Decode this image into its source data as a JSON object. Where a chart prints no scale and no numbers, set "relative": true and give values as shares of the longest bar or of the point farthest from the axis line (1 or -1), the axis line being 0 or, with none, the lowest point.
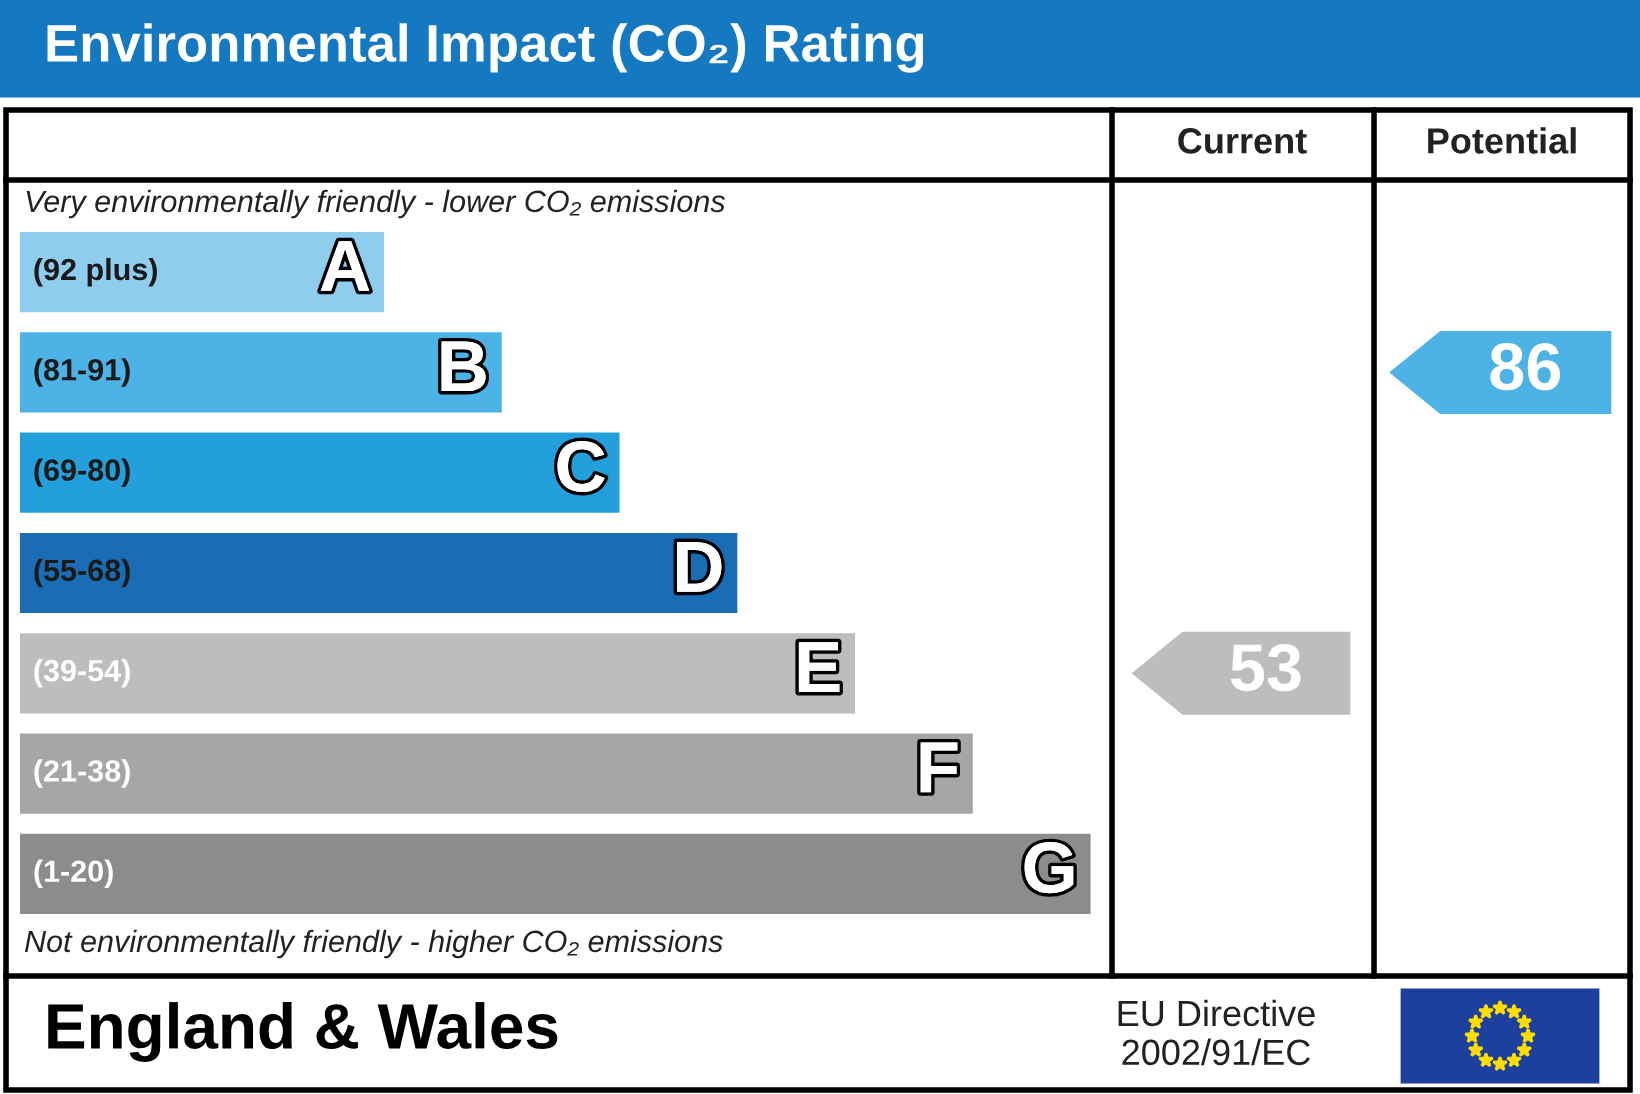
{
  "chart_data": {
    "type": "bar",
    "orientation": "horizontal",
    "relative": true,
    "title": "Environmental Impact (CO₂) Rating",
    "categories": [
      "(92 plus)",
      "(81-91)",
      "(69-80)",
      "(55-68)",
      "(39-54)",
      "(21-38)",
      "(1-20)"
    ],
    "values": [
      0.34,
      0.45,
      0.56,
      0.67,
      0.78,
      0.89,
      1.0
    ],
    "colors": [
      "#8fcdee",
      "#4db3e6",
      "#23a0db",
      "#1a6db5",
      "#bdbdbd",
      "#a6a6a6",
      "#8c8c8c"
    ],
    "annotations": [
      "Current",
      "Potential",
      "Very environmentally friendly - lower CO₂ emissions",
      "Not environmentally friendly - higher CO₂ emissions",
      "England & Wales",
      "EU Directive\n2002/91/EC",
      "53",
      "86",
      "A",
      "B",
      "C",
      "D",
      "E",
      "F",
      "G"
    ]
  }
}
